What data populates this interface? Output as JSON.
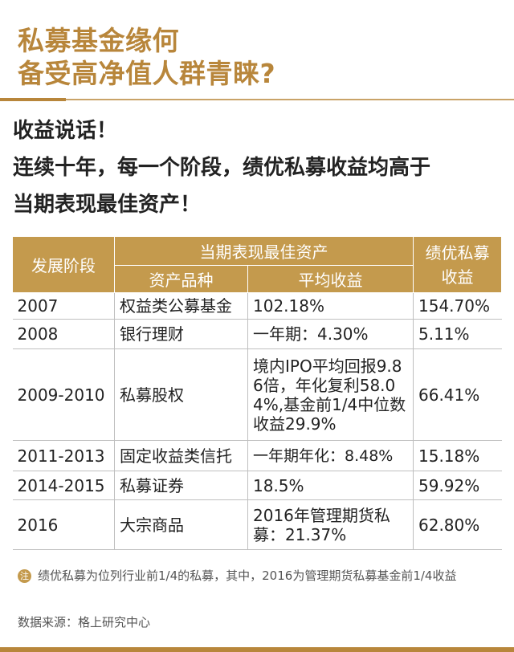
{
  "title": {
    "line1": "私募基金缘何",
    "line2": "备受高净值人群青睐?"
  },
  "headline": {
    "line1": "收益说话！",
    "line2": "连续十年，每一个阶段，绩优私募收益均高于",
    "line3": "当期表现最佳资产！"
  },
  "table": {
    "header": {
      "stage": "发展阶段",
      "group": "当期表现最佳资产",
      "asset": "资产品种",
      "avg": "平均收益",
      "pe": "绩优私募收益"
    },
    "rows": [
      {
        "period": "2007",
        "asset": "权益类公募基金",
        "avg": "102.18%",
        "pe": "154.70%"
      },
      {
        "period": "2008",
        "asset": "银行理财",
        "avg": "一年期：4.30%",
        "pe": "5.11%"
      },
      {
        "period": "2009-2010",
        "asset": "私募股权",
        "avg": "境内IPO平均回报9.86倍，年化复利58.04%,基金前1/4中位数收益29.9%",
        "pe": "66.41%"
      },
      {
        "period": "2011-2013",
        "asset": "固定收益类信托",
        "avg": "一年期年化：8.48%",
        "pe": "15.18%"
      },
      {
        "period": "2014-2015",
        "asset": "私募证券",
        "avg": "18.5%",
        "pe": "59.92%"
      },
      {
        "period": "2016",
        "asset": "大宗商品",
        "avg": "2016年管理期货私募：21.37%",
        "pe": "62.80%"
      }
    ]
  },
  "note": {
    "icon_label": "注",
    "text": "绩优私募为位列行业前1/4的私募，其中，2016为管理期货私募基金前1/4收益"
  },
  "source": "数据来源：格上研究中心",
  "colors": {
    "accent": "#b8863b",
    "header_bg": "#c49a4d"
  }
}
